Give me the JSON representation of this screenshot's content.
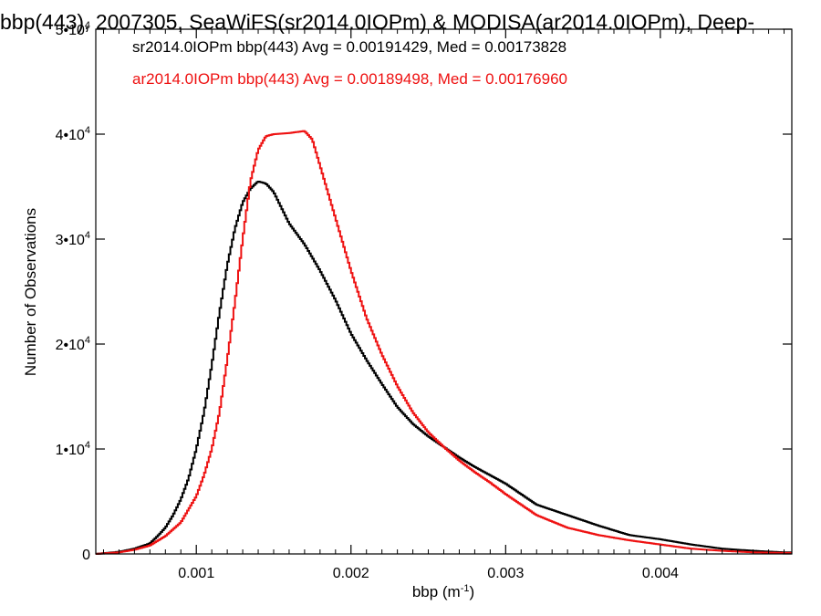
{
  "chart_data": {
    "type": "line",
    "title": "bbp(443), 2007305, SeaWiFS(sr2014.0IOPm) & MODISA(ar2014.0IOPm), Deep-",
    "xlabel": "bbp (m",
    "xlabel_sup": "-1",
    "xlabel_end": ")",
    "ylabel": "Number of Observations",
    "xlim": [
      0.00035,
      0.00485
    ],
    "ylim": [
      0,
      50000
    ],
    "xticks": [
      {
        "value": 0.001,
        "label": "0.001"
      },
      {
        "value": 0.002,
        "label": "0.002"
      },
      {
        "value": 0.003,
        "label": "0.003"
      },
      {
        "value": 0.004,
        "label": "0.004"
      }
    ],
    "yticks": [
      {
        "value": 0,
        "mant": "0",
        "exp": ""
      },
      {
        "value": 10000,
        "mant": "1•10",
        "exp": "4"
      },
      {
        "value": 20000,
        "mant": "2•10",
        "exp": "4"
      },
      {
        "value": 30000,
        "mant": "3•10",
        "exp": "4"
      },
      {
        "value": 40000,
        "mant": "4•10",
        "exp": "4"
      },
      {
        "value": 50000,
        "mant": "5•10",
        "exp": "4"
      }
    ],
    "legend_position": "top-left",
    "series": [
      {
        "legend": "sr2014.0IOPm bbp(443) Avg = 0.00191429, Med = 0.00173828",
        "color": "#000000",
        "style": "step",
        "x": [
          0.00035,
          0.0005,
          0.0006,
          0.0007,
          0.00075,
          0.0008,
          0.00085,
          0.0009,
          0.00095,
          0.001,
          0.00105,
          0.0011,
          0.00115,
          0.0012,
          0.00125,
          0.0013,
          0.00135,
          0.0014,
          0.00145,
          0.0015,
          0.00155,
          0.0016,
          0.0017,
          0.0018,
          0.0019,
          0.002,
          0.0021,
          0.0022,
          0.0023,
          0.0024,
          0.0025,
          0.0026,
          0.0027,
          0.0028,
          0.0029,
          0.003,
          0.0032,
          0.0034,
          0.0036,
          0.0038,
          0.004,
          0.0042,
          0.0044,
          0.0046,
          0.0048
        ],
        "y": [
          0,
          200,
          500,
          1000,
          1700,
          2500,
          3700,
          5200,
          7200,
          10000,
          13500,
          18000,
          23000,
          27500,
          31000,
          33500,
          34800,
          35500,
          35300,
          34500,
          33000,
          31500,
          29500,
          27000,
          24200,
          21000,
          18500,
          16200,
          14000,
          12400,
          11200,
          10200,
          9200,
          8300,
          7500,
          6700,
          4700,
          3700,
          2700,
          1800,
          1400,
          900,
          500,
          300,
          150
        ]
      },
      {
        "legend": "ar2014.0IOPm bbp(443) Avg = 0.00189498, Med = 0.00176960",
        "color": "#ee1111",
        "style": "step",
        "x": [
          0.00035,
          0.0005,
          0.0006,
          0.0007,
          0.0008,
          0.0009,
          0.001,
          0.00105,
          0.0011,
          0.00115,
          0.0012,
          0.00125,
          0.0013,
          0.00135,
          0.0014,
          0.00145,
          0.0015,
          0.0016,
          0.0017,
          0.00175,
          0.0018,
          0.00185,
          0.0019,
          0.002,
          0.0021,
          0.0022,
          0.0023,
          0.0024,
          0.0025,
          0.0026,
          0.0027,
          0.0028,
          0.0029,
          0.003,
          0.0032,
          0.0034,
          0.0036,
          0.0038,
          0.004,
          0.0042,
          0.0044,
          0.0046,
          0.0048
        ],
        "y": [
          0,
          150,
          400,
          800,
          1700,
          3000,
          5500,
          7500,
          10000,
          13500,
          18500,
          24000,
          30000,
          35500,
          38500,
          39800,
          40000,
          40100,
          40300,
          39500,
          37000,
          34500,
          32000,
          27000,
          22500,
          19000,
          16000,
          13500,
          11600,
          10200,
          8900,
          7800,
          6800,
          5700,
          3700,
          2500,
          1800,
          1300,
          900,
          500,
          300,
          150,
          100
        ]
      }
    ]
  }
}
